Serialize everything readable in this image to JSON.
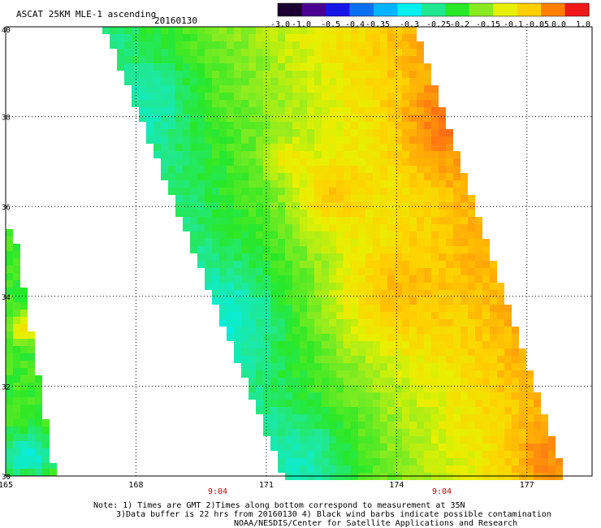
{
  "header": {
    "title": "ASCAT 25KM MLE-1 ascending",
    "date": "20160130"
  },
  "colorbar": {
    "labels": [
      "-3.0",
      "-1.0",
      "-0.5",
      "-0.4",
      "-0.35",
      "-0.3",
      "-0.25",
      "-0.2",
      "-0.15",
      "-0.1",
      "-0.05",
      "0.0",
      "1.0"
    ],
    "colors": [
      "#1a0030",
      "#4a0090",
      "#1515e8",
      "#0a70f0",
      "#00b4ff",
      "#00f0f0",
      "#20e890",
      "#28e828",
      "#8aea20",
      "#e8f000",
      "#ffd000",
      "#ff8000",
      "#f01818"
    ]
  },
  "map": {
    "lat_labels": [
      "40",
      "38",
      "36",
      "34",
      "32",
      "30"
    ],
    "lon_labels": [
      "165",
      "168",
      "171",
      "174",
      "177"
    ],
    "time_labels": [
      "9:04",
      "9:04"
    ],
    "time_color": "#d00000"
  },
  "notes": {
    "line1": "Note: 1) Times are GMT 2)Times along bottom correspond to measurement at 35N",
    "line2": "3)Data buffer is 22 hrs from 20160130 4) Black wind barbs indicate possible contamination",
    "line3": "NOAA/NESDIS/Center for Satellite Applications and Research"
  }
}
